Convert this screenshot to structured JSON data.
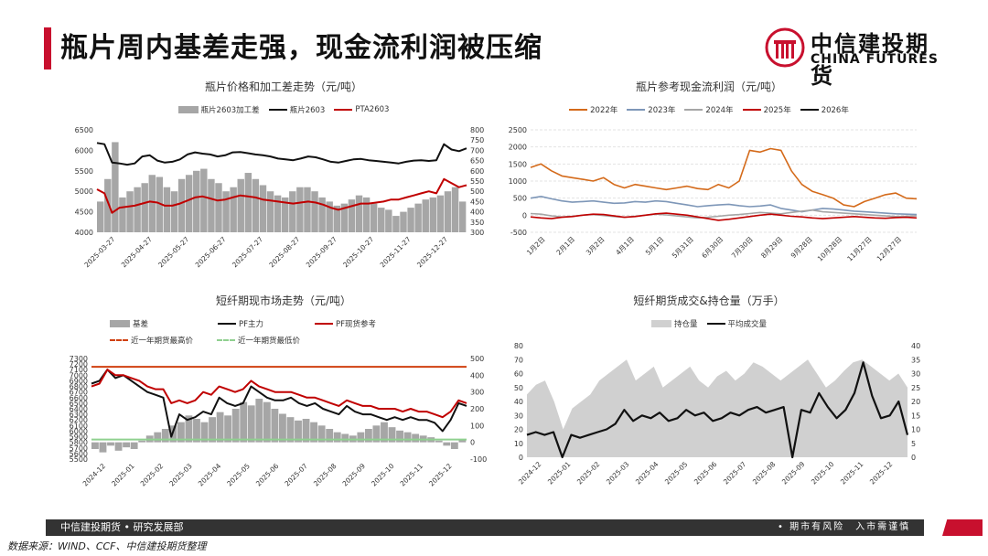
{
  "page": {
    "title": "瓶片周内基差走强，现金流利润被压缩",
    "logo_cn": "中信建投期货",
    "logo_en": "CHINA FUTURES",
    "footer_left": "中信建投期货 • 研究发展部",
    "footer_right": "• 期市有风险　入市需谨慎",
    "source": "数据来源：WIND、CCF、中信建投期货整理",
    "colors": {
      "accent": "#c8102e",
      "dark": "#333333"
    }
  },
  "chart_data": [
    {
      "id": "c1",
      "type": "bar+line",
      "title": "瓶片价格和加工差走势（元/吨）",
      "x_ticks": [
        "2025-03-27",
        "2025-04-27",
        "2025-05-27",
        "2025-06-27",
        "2025-07-27",
        "2025-08-27",
        "2025-09-27",
        "2025-10-27",
        "2025-11-27",
        "2025-12-27"
      ],
      "y_left": {
        "min": 4000,
        "max": 6500,
        "ticks": [
          4000,
          4500,
          5000,
          5500,
          6000,
          6500
        ]
      },
      "y_right": {
        "min": 300,
        "max": 800,
        "ticks": [
          300,
          350,
          400,
          450,
          500,
          550,
          600,
          650,
          700,
          750,
          800
        ]
      },
      "series": [
        {
          "name": "瓶片2603加工差",
          "kind": "bar",
          "axis": "right",
          "color": "#a6a6a6",
          "values": [
            450,
            560,
            740,
            470,
            500,
            520,
            540,
            580,
            570,
            520,
            500,
            560,
            580,
            600,
            610,
            560,
            540,
            500,
            520,
            560,
            590,
            560,
            530,
            500,
            480,
            470,
            500,
            520,
            520,
            500,
            470,
            450,
            430,
            440,
            460,
            480,
            470,
            440,
            420,
            410,
            380,
            400,
            420,
            440,
            460,
            470,
            480,
            500,
            520,
            450
          ]
        },
        {
          "name": "瓶片2603",
          "kind": "line",
          "axis": "left",
          "color": "#111111",
          "values": [
            6180,
            6150,
            5700,
            5680,
            5650,
            5680,
            5850,
            5880,
            5750,
            5700,
            5720,
            5780,
            5900,
            5950,
            5920,
            5900,
            5850,
            5880,
            5950,
            5960,
            5930,
            5900,
            5880,
            5850,
            5800,
            5780,
            5760,
            5800,
            5850,
            5830,
            5780,
            5720,
            5700,
            5740,
            5780,
            5790,
            5760,
            5740,
            5720,
            5700,
            5680,
            5720,
            5750,
            5760,
            5740,
            5760,
            6150,
            6020,
            5980,
            6050
          ]
        },
        {
          "name": "PTA2603",
          "kind": "line",
          "axis": "right",
          "color": "#c00000",
          "values": [
            510,
            490,
            395,
            420,
            425,
            430,
            440,
            450,
            445,
            430,
            430,
            440,
            455,
            470,
            475,
            465,
            455,
            460,
            470,
            480,
            475,
            470,
            460,
            455,
            450,
            445,
            440,
            445,
            450,
            445,
            435,
            420,
            410,
            420,
            430,
            440,
            440,
            445,
            450,
            460,
            460,
            470,
            480,
            490,
            500,
            490,
            560,
            540,
            520,
            530
          ]
        }
      ]
    },
    {
      "id": "c2",
      "type": "line",
      "title": "瓶片参考现金流利润（元/吨）",
      "x_ticks": [
        "1月2日",
        "2月1日",
        "3月2日",
        "4月1日",
        "5月1日",
        "5月31日",
        "6月30日",
        "7月30日",
        "8月29日",
        "9月28日",
        "10月28日",
        "11月27日",
        "12月27日"
      ],
      "y": {
        "min": -500,
        "max": 2500,
        "ticks": [
          -500,
          0,
          500,
          1000,
          1500,
          2000,
          2500
        ]
      },
      "series": [
        {
          "name": "2022年",
          "color": "#d46a1a",
          "values": [
            1400,
            1500,
            1300,
            1150,
            1100,
            1050,
            1000,
            1100,
            900,
            800,
            900,
            850,
            800,
            750,
            800,
            850,
            780,
            750,
            900,
            800,
            1000,
            1900,
            1850,
            1950,
            1900,
            1300,
            900,
            700,
            600,
            500,
            300,
            250,
            400,
            500,
            600,
            650,
            500,
            480
          ]
        },
        {
          "name": "2023年",
          "color": "#7e97b8",
          "values": [
            500,
            550,
            480,
            420,
            380,
            400,
            420,
            380,
            350,
            360,
            400,
            380,
            420,
            400,
            350,
            300,
            250,
            280,
            300,
            320,
            280,
            250,
            270,
            300,
            200,
            150,
            100,
            150,
            200,
            180,
            150,
            120,
            100,
            80,
            60,
            40,
            30,
            20
          ]
        },
        {
          "name": "2024年",
          "color": "#a6a6a6",
          "values": [
            50,
            30,
            -20,
            -50,
            -30,
            0,
            20,
            -10,
            -40,
            -60,
            -30,
            0,
            30,
            10,
            -20,
            -50,
            -80,
            -60,
            -30,
            0,
            20,
            50,
            80,
            60,
            40,
            80,
            120,
            150,
            100,
            80,
            60,
            40,
            20,
            0,
            -20,
            -40,
            -30,
            -20
          ]
        },
        {
          "name": "2025年",
          "color": "#c00000",
          "values": [
            -50,
            -80,
            -100,
            -60,
            -40,
            0,
            30,
            20,
            -20,
            -60,
            -40,
            0,
            40,
            60,
            30,
            0,
            -50,
            -100,
            -150,
            -120,
            -80,
            -40,
            0,
            30,
            0,
            -30,
            -50,
            -80,
            -100,
            -80,
            -60,
            -40,
            -60,
            -80,
            -90,
            -70,
            -60,
            -80
          ]
        },
        {
          "name": "2026年",
          "color": "#111111",
          "values": []
        }
      ]
    },
    {
      "id": "c3",
      "type": "bar+line",
      "title": "短纤期现市场走势（元/吨）",
      "x_ticks": [
        "2024-12",
        "2025-01",
        "2025-02",
        "2025-03",
        "2025-04",
        "2025-05",
        "2025-06",
        "2025-07",
        "2025-08",
        "2025-09",
        "2025-10",
        "2025-11",
        "2025-12"
      ],
      "y_left": {
        "min": 5500,
        "max": 7300,
        "ticks": [
          5500,
          5600,
          5700,
          5800,
          5900,
          6000,
          6100,
          6200,
          6300,
          6400,
          6500,
          6600,
          6700,
          6800,
          6900,
          7000,
          7100,
          7200,
          7300
        ]
      },
      "y_right": {
        "min": -100,
        "max": 500,
        "ticks": [
          -100,
          0,
          100,
          200,
          300,
          400,
          500
        ]
      },
      "series": [
        {
          "name": "基差",
          "kind": "bar",
          "axis": "right",
          "color": "#a6a6a6",
          "values": [
            -40,
            -60,
            -20,
            -50,
            -30,
            -40,
            10,
            40,
            60,
            80,
            100,
            120,
            160,
            140,
            120,
            150,
            180,
            160,
            200,
            240,
            220,
            260,
            240,
            200,
            170,
            150,
            130,
            140,
            120,
            100,
            80,
            60,
            50,
            40,
            60,
            80,
            100,
            120,
            90,
            70,
            60,
            50,
            40,
            30,
            10,
            -20,
            -40,
            20
          ]
        },
        {
          "name": "PF主力",
          "kind": "line",
          "axis": "left",
          "color": "#111111",
          "values": [
            6850,
            6900,
            7100,
            6950,
            7000,
            6900,
            6800,
            6700,
            6650,
            6600,
            5900,
            6300,
            6200,
            6250,
            6350,
            6300,
            6600,
            6500,
            6450,
            6500,
            6800,
            6700,
            6600,
            6550,
            6550,
            6600,
            6500,
            6450,
            6500,
            6400,
            6350,
            6300,
            6450,
            6350,
            6300,
            6300,
            6250,
            6200,
            6250,
            6200,
            6250,
            6200,
            6200,
            6150,
            6000,
            6200,
            6500,
            6450
          ]
        },
        {
          "name": "PF现货参考",
          "kind": "line",
          "axis": "left",
          "color": "#c00000",
          "values": [
            6800,
            6850,
            7100,
            7000,
            7000,
            6950,
            6900,
            6800,
            6750,
            6750,
            6500,
            6550,
            6500,
            6550,
            6700,
            6650,
            6800,
            6750,
            6700,
            6750,
            6900,
            6800,
            6750,
            6700,
            6700,
            6700,
            6650,
            6600,
            6600,
            6550,
            6500,
            6450,
            6550,
            6500,
            6450,
            6450,
            6400,
            6400,
            6400,
            6350,
            6400,
            6350,
            6350,
            6300,
            6250,
            6350,
            6550,
            6500
          ]
        },
        {
          "name": "近一年期货最高价",
          "kind": "hline",
          "axis": "left",
          "color": "#d04010",
          "value": 7150
        },
        {
          "name": "近一年期货最低价",
          "kind": "hline",
          "axis": "left",
          "color": "#8fd08f",
          "value": 5850
        }
      ]
    },
    {
      "id": "c4",
      "type": "area+line",
      "title": "短纤期货成交&持仓量（万手）",
      "x_ticks": [
        "2024-12",
        "2025-01",
        "2025-02",
        "2025-03",
        "2025-04",
        "2025-05",
        "2025-06",
        "2025-07",
        "2025-08",
        "2025-09",
        "2025-10",
        "2025-11",
        "2025-12"
      ],
      "y_left": {
        "min": 0,
        "max": 80,
        "ticks": [
          0,
          10,
          20,
          30,
          40,
          50,
          60,
          70,
          80
        ]
      },
      "y_right": {
        "min": 0,
        "max": 40,
        "ticks": [
          0,
          5,
          10,
          15,
          20,
          25,
          30,
          35,
          40
        ]
      },
      "series": [
        {
          "name": "持仓量",
          "kind": "area",
          "axis": "left",
          "color": "#d0d0d0",
          "values": [
            45,
            52,
            55,
            40,
            20,
            35,
            40,
            45,
            55,
            60,
            65,
            70,
            55,
            60,
            65,
            50,
            55,
            60,
            65,
            55,
            50,
            58,
            62,
            55,
            60,
            68,
            65,
            60,
            55,
            60,
            65,
            70,
            60,
            50,
            55,
            62,
            68,
            70,
            65,
            60,
            55,
            60,
            50
          ]
        },
        {
          "name": "平均成交量",
          "kind": "line",
          "axis": "right",
          "color": "#111111",
          "values": [
            8,
            9,
            8,
            9,
            0,
            8,
            7,
            8,
            9,
            10,
            12,
            17,
            13,
            15,
            14,
            16,
            13,
            14,
            17,
            15,
            16,
            13,
            14,
            16,
            15,
            17,
            18,
            16,
            17,
            18,
            0,
            17,
            16,
            23,
            18,
            14,
            17,
            23,
            34,
            22,
            14,
            15,
            20,
            8
          ]
        }
      ]
    }
  ]
}
